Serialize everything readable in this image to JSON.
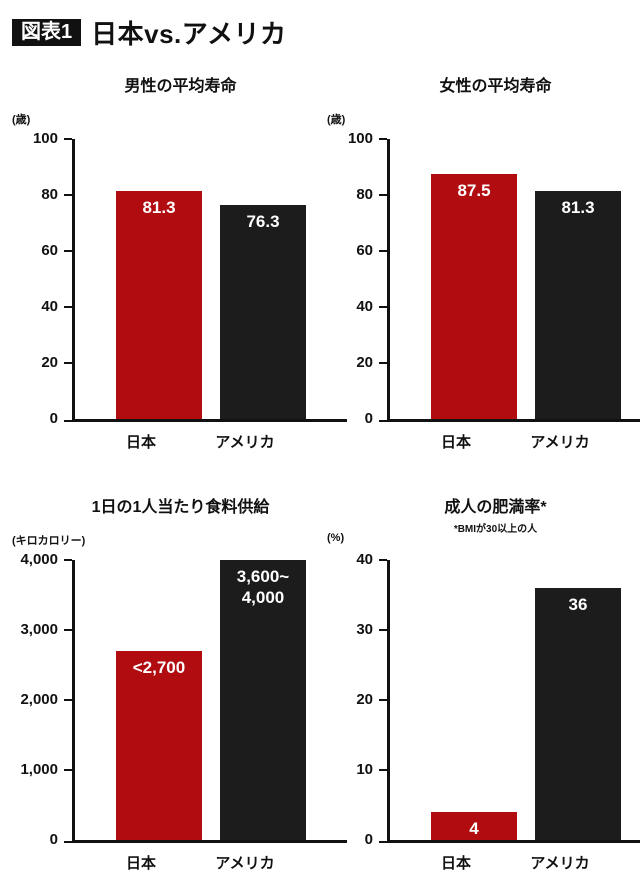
{
  "header": {
    "badge": "図表1",
    "title": "日本vs.アメリカ"
  },
  "colors": {
    "japan_bar": "#b10c10",
    "usa_bar": "#1c1c1c",
    "axis": "#111111"
  },
  "chart_data": [
    {
      "type": "bar",
      "title": "男性の平均寿命",
      "unit": "(歳)",
      "note": "",
      "categories": [
        "日本",
        "アメリカ"
      ],
      "keys": [
        "japan",
        "usa"
      ],
      "values": [
        81.3,
        76.3
      ],
      "value_labels": [
        "81.3",
        "76.3"
      ],
      "bar_colors": [
        "#b10c10",
        "#1c1c1c"
      ],
      "ylim": [
        0,
        100
      ],
      "yticks": [
        0,
        20,
        40,
        60,
        80,
        100
      ],
      "ytick_labels": [
        "0",
        "20",
        "40",
        "60",
        "80",
        "100"
      ],
      "legend": "none",
      "grid": false
    },
    {
      "type": "bar",
      "title": "女性の平均寿命",
      "unit": "(歳)",
      "note": "",
      "categories": [
        "日本",
        "アメリカ"
      ],
      "keys": [
        "japan",
        "usa"
      ],
      "values": [
        87.5,
        81.3
      ],
      "value_labels": [
        "87.5",
        "81.3"
      ],
      "bar_colors": [
        "#b10c10",
        "#1c1c1c"
      ],
      "ylim": [
        0,
        100
      ],
      "yticks": [
        0,
        20,
        40,
        60,
        80,
        100
      ],
      "ytick_labels": [
        "0",
        "20",
        "40",
        "60",
        "80",
        "100"
      ],
      "legend": "none",
      "grid": false
    },
    {
      "type": "bar",
      "title": "1日の1人当たり食料供給",
      "unit": "(キロカロリー)",
      "note": "",
      "categories": [
        "日本",
        "アメリカ"
      ],
      "keys": [
        "japan",
        "usa"
      ],
      "values": [
        2700,
        4000
      ],
      "value_labels": [
        "<2,700",
        "3,600~\n4,000"
      ],
      "bar_colors": [
        "#b10c10",
        "#1c1c1c"
      ],
      "ylim": [
        0,
        4000
      ],
      "yticks": [
        0,
        1000,
        2000,
        3000,
        4000
      ],
      "ytick_labels": [
        "0",
        "1,000",
        "2,000",
        "3,000",
        "4,000"
      ],
      "legend": "none",
      "grid": false
    },
    {
      "type": "bar",
      "title": "成人の肥満率*",
      "unit": "(%)",
      "note": "*BMIが30以上の人",
      "categories": [
        "日本",
        "アメリカ"
      ],
      "keys": [
        "japan",
        "usa"
      ],
      "values": [
        4,
        36
      ],
      "value_labels": [
        "4",
        "36"
      ],
      "bar_colors": [
        "#b10c10",
        "#1c1c1c"
      ],
      "ylim": [
        0,
        40
      ],
      "yticks": [
        0,
        10,
        20,
        30,
        40
      ],
      "ytick_labels": [
        "0",
        "10",
        "20",
        "30",
        "40"
      ],
      "legend": "none",
      "grid": false
    }
  ]
}
